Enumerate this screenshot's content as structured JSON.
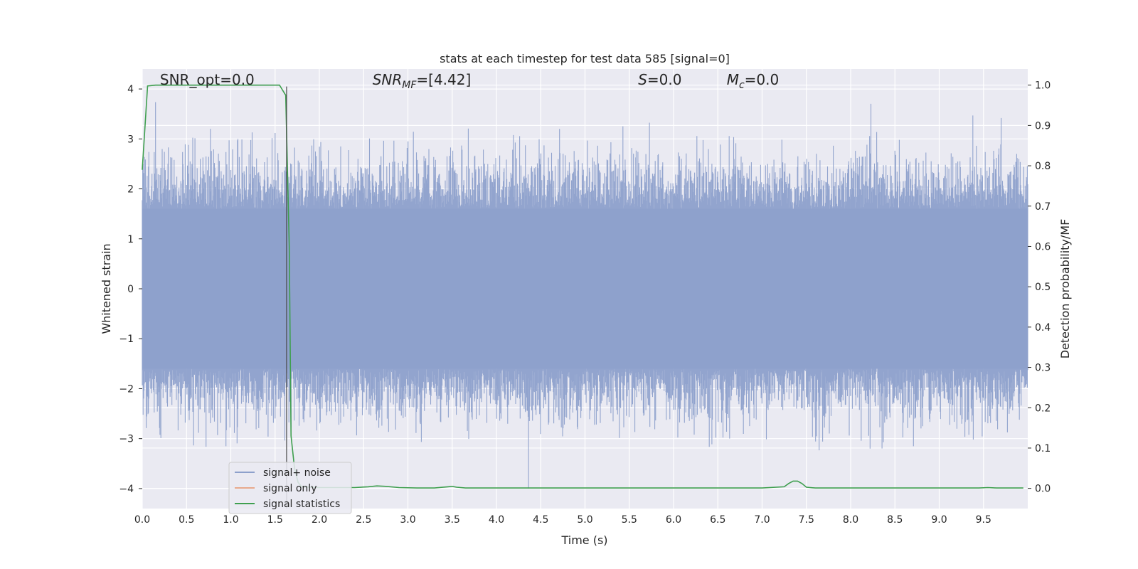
{
  "chart_data": {
    "type": "line",
    "title": "stats at each timestep for test data 585 [signal=0]",
    "xlabel": "Time (s)",
    "ylabel_left": "Whitened strain",
    "ylabel_right": "Detection probability/MF",
    "xlim": [
      0.0,
      10.0
    ],
    "ylim_left": [
      -4.4,
      4.4
    ],
    "ylim_right": [
      -0.05,
      1.04
    ],
    "x_ticks": [
      0.0,
      0.5,
      1.0,
      1.5,
      2.0,
      2.5,
      3.0,
      3.5,
      4.0,
      4.5,
      5.0,
      5.5,
      6.0,
      6.5,
      7.0,
      7.5,
      8.0,
      8.5,
      9.0,
      9.5
    ],
    "x_tick_labels": [
      "0.0",
      "0.5",
      "1.0",
      "1.5",
      "2.0",
      "2.5",
      "3.0",
      "3.5",
      "4.0",
      "4.5",
      "5.0",
      "5.5",
      "6.0",
      "6.5",
      "7.0",
      "7.5",
      "8.0",
      "8.5",
      "9.0",
      "9.5"
    ],
    "y_left_ticks": [
      -4,
      -3,
      -2,
      -1,
      0,
      1,
      2,
      3,
      4
    ],
    "y_left_tick_labels": [
      "−4",
      "−3",
      "−2",
      "−1",
      "0",
      "1",
      "2",
      "3",
      "4"
    ],
    "y_right_ticks": [
      0.0,
      0.1,
      0.2,
      0.3,
      0.4,
      0.5,
      0.6,
      0.7,
      0.8,
      0.9,
      1.0
    ],
    "y_right_tick_labels": [
      "0.0",
      "0.1",
      "0.2",
      "0.3",
      "0.4",
      "0.5",
      "0.6",
      "0.7",
      "0.8",
      "0.9",
      "1.0"
    ],
    "grid": true,
    "legend_position": "lower-left",
    "annotations": [
      {
        "text": "SNR_opt=0.0",
        "x": 0.2,
        "y": 4.1
      },
      {
        "text": "SNR",
        "sub": "MF",
        "rest": "=[4.42]",
        "italic": true,
        "x": 2.6,
        "y": 4.1
      },
      {
        "text": "S",
        "rest": "=0.0",
        "italic": true,
        "x": 5.6,
        "y": 4.1
      },
      {
        "text": "M",
        "sub": "c",
        "rest": "=0.0",
        "italic": true,
        "x": 6.6,
        "y": 4.1
      }
    ],
    "marker_line": {
      "x": 1.63,
      "y_top": 4.05,
      "y_bottom": -4.4
    },
    "series": [
      {
        "name": "signal+ noise",
        "color": "#8da0cb",
        "axis": "left",
        "kind": "noise",
        "x_range": [
          0.0,
          10.0
        ],
        "envelope_pos": [
          1.6,
          2.6,
          4.1
        ],
        "envelope_neg": [
          -1.6,
          -2.6,
          -4.0
        ],
        "sample_count": 2000
      },
      {
        "name": "signal only",
        "color": "#e8a98c",
        "axis": "left",
        "kind": "flat",
        "values": []
      },
      {
        "name": "signal statistics",
        "color": "#3f9f4f",
        "axis": "right",
        "kind": "line",
        "x": [
          0.0,
          0.06,
          0.15,
          0.3,
          0.5,
          1.0,
          1.5,
          1.55,
          1.62,
          1.66,
          1.68,
          1.72,
          1.76,
          1.8,
          2.0,
          2.2,
          2.4,
          2.55,
          2.65,
          2.75,
          2.9,
          3.1,
          3.3,
          3.45,
          3.5,
          3.55,
          3.65,
          4.0,
          5.0,
          6.0,
          7.0,
          7.25,
          7.3,
          7.35,
          7.4,
          7.45,
          7.5,
          7.6,
          8.0,
          9.0,
          9.45,
          9.55,
          9.65,
          9.95
        ],
        "y": [
          0.79,
          0.998,
          1.0,
          1.0,
          1.0,
          1.0,
          1.0,
          1.0,
          0.975,
          0.6,
          0.13,
          0.05,
          0.015,
          0.004,
          0.002,
          0.002,
          0.002,
          0.004,
          0.006,
          0.005,
          0.002,
          0.001,
          0.001,
          0.004,
          0.005,
          0.003,
          0.001,
          0.001,
          0.001,
          0.001,
          0.001,
          0.004,
          0.012,
          0.018,
          0.018,
          0.012,
          0.003,
          0.001,
          0.001,
          0.001,
          0.001,
          0.002,
          0.001,
          0.001
        ]
      }
    ]
  }
}
